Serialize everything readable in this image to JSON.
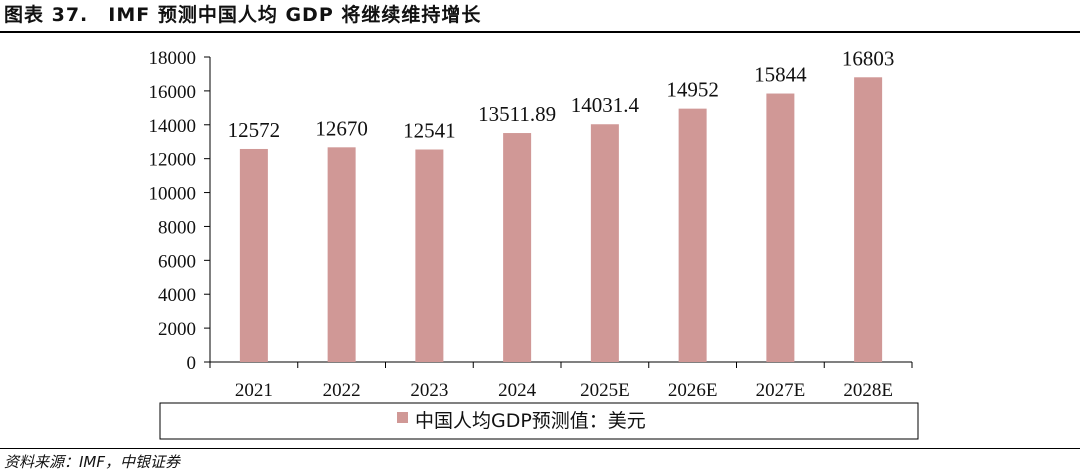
{
  "header": {
    "title": "图表 37.　IMF 预测中国人均 GDP 将继续维持增长"
  },
  "footer": {
    "source": "资料来源：IMF，中银证券"
  },
  "colors": {
    "bar": "#d09896",
    "axis": "#000000"
  },
  "chart_data": {
    "type": "bar",
    "categories": [
      "2021",
      "2022",
      "2023",
      "2024",
      "2025E",
      "2026E",
      "2027E",
      "2028E"
    ],
    "series": [
      {
        "name": "中国人均GDP预测值：美元",
        "values": [
          12572,
          12670,
          12541,
          13511.89,
          14031.4,
          14952,
          15844,
          16803
        ],
        "labels": [
          "12572",
          "12670",
          "12541",
          "13511.89",
          "14031.4",
          "14952",
          "15844",
          "16803"
        ]
      }
    ],
    "yticks": [
      "0",
      "2000",
      "4000",
      "6000",
      "8000",
      "10000",
      "12000",
      "14000",
      "16000",
      "18000"
    ],
    "ylim": [
      0,
      18000
    ],
    "legend_position": "bottom",
    "grid": false
  }
}
